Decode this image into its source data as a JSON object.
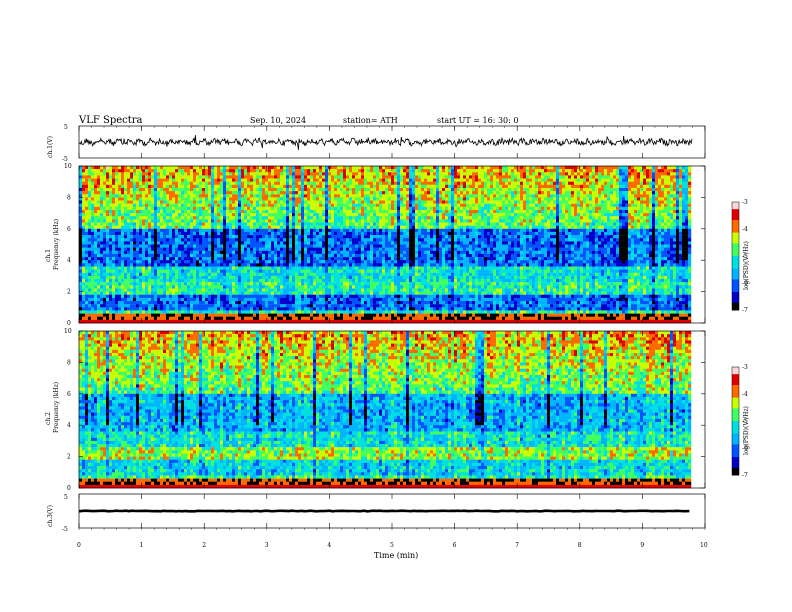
{
  "header": {
    "title": "VLF  Spectra",
    "date": "Sep. 10, 2024",
    "station": "station= ATH",
    "start_ut": "start  UT  =    16: 30: 0"
  },
  "chart_data": [
    {
      "type": "line",
      "panel": "ch1-waveform",
      "ylabel": "ch.1(V)",
      "ylim": [
        -5,
        5
      ],
      "y_ticks": [
        "5",
        "-5"
      ],
      "xlim": [
        0,
        10
      ],
      "series": [
        {
          "values_description_free": true,
          "mean": 0,
          "approx_amplitude": 1.2
        }
      ]
    },
    {
      "type": "heatmap",
      "panel": "ch1-spectrogram",
      "ylabel_line1": "ch.1",
      "ylabel_line2": "Frequency  (kHz)",
      "ylim": [
        0,
        10
      ],
      "y_ticks": [
        "0",
        "2",
        "4",
        "6",
        "8",
        "10"
      ],
      "xlim": [
        0,
        9.8
      ],
      "colorbar": {
        "label": "log(PSD)(V²/Hz)",
        "ticks": [
          "-3",
          "-4",
          "-5",
          "-6",
          "-7"
        ],
        "range": [
          -7,
          -3
        ]
      }
    },
    {
      "type": "heatmap",
      "panel": "ch2-spectrogram",
      "ylabel_line1": "ch.2",
      "ylabel_line2": "Frequency  (kHz)",
      "ylim": [
        0,
        10
      ],
      "y_ticks": [
        "0",
        "2",
        "4",
        "6",
        "8",
        "10"
      ],
      "xlim": [
        0,
        9.8
      ],
      "colorbar": {
        "label": "log(PSD)(V²/Hz)",
        "ticks": [
          "-3",
          "-4",
          "-5",
          "-6",
          "-7"
        ],
        "range": [
          -7,
          -3
        ]
      }
    },
    {
      "type": "line",
      "panel": "ch3-waveform",
      "ylabel": "ch.3(V)",
      "ylim": [
        -5,
        5
      ],
      "y_ticks": [
        "5",
        "-5"
      ],
      "xlim": [
        0,
        10
      ],
      "series": [
        {
          "mean": 0,
          "approx_amplitude": 0.3
        }
      ]
    }
  ],
  "xaxis": {
    "label": "Time  (min)",
    "ticks": [
      "0",
      "1",
      "2",
      "3",
      "4",
      "5",
      "6",
      "7",
      "8",
      "9",
      "10"
    ],
    "range": [
      0,
      10
    ]
  },
  "colors": {
    "colormap": [
      "#000000",
      "#0000c8",
      "#0055ff",
      "#00b4ff",
      "#00e0e0",
      "#40ff60",
      "#c8ff00",
      "#ff6a00",
      "#e00000",
      "#ffd6d6"
    ]
  }
}
